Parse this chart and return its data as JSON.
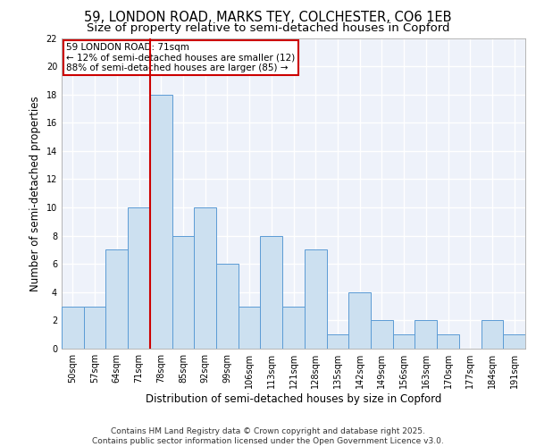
{
  "title_line1": "59, LONDON ROAD, MARKS TEY, COLCHESTER, CO6 1EB",
  "title_line2": "Size of property relative to semi-detached houses in Copford",
  "xlabel": "Distribution of semi-detached houses by size in Copford",
  "ylabel": "Number of semi-detached properties",
  "categories": [
    "50sqm",
    "57sqm",
    "64sqm",
    "71sqm",
    "78sqm",
    "85sqm",
    "92sqm",
    "99sqm",
    "106sqm",
    "113sqm",
    "121sqm",
    "128sqm",
    "135sqm",
    "142sqm",
    "149sqm",
    "156sqm",
    "163sqm",
    "170sqm",
    "177sqm",
    "184sqm",
    "191sqm"
  ],
  "values": [
    3,
    3,
    7,
    10,
    18,
    8,
    10,
    6,
    3,
    8,
    3,
    7,
    1,
    4,
    2,
    1,
    2,
    1,
    0,
    2,
    1
  ],
  "bar_color": "#cce0f0",
  "bar_edge_color": "#5b9bd5",
  "highlight_index": 3,
  "highlight_color": "#cc0000",
  "annotation_text": "59 LONDON ROAD: 71sqm\n← 12% of semi-detached houses are smaller (12)\n88% of semi-detached houses are larger (85) →",
  "annotation_box_color": "#cc0000",
  "footer_text": "Contains HM Land Registry data © Crown copyright and database right 2025.\nContains public sector information licensed under the Open Government Licence v3.0.",
  "ylim": [
    0,
    22
  ],
  "yticks": [
    0,
    2,
    4,
    6,
    8,
    10,
    12,
    14,
    16,
    18,
    20,
    22
  ],
  "background_color": "#eef2fa",
  "grid_color": "#ffffff",
  "title_fontsize": 10.5,
  "subtitle_fontsize": 9.5,
  "axis_label_fontsize": 8.5,
  "tick_fontsize": 7,
  "footer_fontsize": 6.5,
  "annotation_fontsize": 7.5
}
